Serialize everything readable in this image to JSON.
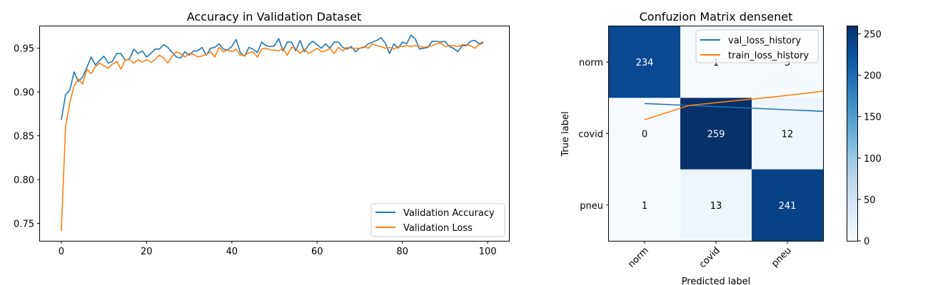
{
  "chart_data": [
    {
      "type": "line",
      "title": "Accuracy in Validation Dataset",
      "xlabel": "",
      "ylabel": "",
      "xlim": [
        -5,
        105
      ],
      "ylim": [
        0.73,
        0.975
      ],
      "x_ticks": [
        0,
        20,
        40,
        60,
        80,
        100
      ],
      "y_ticks": [
        0.75,
        0.8,
        0.85,
        0.9,
        0.95
      ],
      "y_tick_labels": [
        "0.75",
        "0.80",
        "0.85",
        "0.90",
        "0.95"
      ],
      "legend_position": "bottom-right",
      "series": [
        {
          "name": "Validation Accuracy",
          "color": "#1f77b4",
          "x": [
            0,
            1,
            2,
            3,
            4,
            5,
            6,
            7,
            8,
            9,
            10,
            11,
            12,
            13,
            14,
            15,
            16,
            17,
            18,
            19,
            20,
            21,
            22,
            23,
            24,
            25,
            26,
            27,
            28,
            29,
            30,
            31,
            32,
            33,
            34,
            35,
            36,
            37,
            38,
            39,
            40,
            41,
            42,
            43,
            44,
            45,
            46,
            47,
            48,
            49,
            50,
            51,
            52,
            53,
            54,
            55,
            56,
            57,
            58,
            59,
            60,
            61,
            62,
            63,
            64,
            65,
            66,
            67,
            68,
            69,
            70,
            71,
            72,
            73,
            74,
            75,
            76,
            77,
            78,
            79,
            80,
            81,
            82,
            83,
            84,
            85,
            86,
            87,
            88,
            89,
            90,
            91,
            92,
            93,
            94,
            95,
            96,
            97,
            98,
            99
          ],
          "values": [
            0.868,
            0.897,
            0.902,
            0.923,
            0.912,
            0.917,
            0.928,
            0.94,
            0.931,
            0.936,
            0.941,
            0.933,
            0.935,
            0.944,
            0.944,
            0.936,
            0.938,
            0.949,
            0.944,
            0.947,
            0.94,
            0.944,
            0.949,
            0.949,
            0.954,
            0.951,
            0.945,
            0.94,
            0.939,
            0.946,
            0.942,
            0.947,
            0.947,
            0.951,
            0.942,
            0.95,
            0.951,
            0.955,
            0.949,
            0.948,
            0.952,
            0.96,
            0.945,
            0.941,
            0.951,
            0.949,
            0.945,
            0.957,
            0.953,
            0.952,
            0.953,
            0.961,
            0.947,
            0.957,
            0.957,
            0.947,
            0.959,
            0.946,
            0.954,
            0.958,
            0.954,
            0.95,
            0.955,
            0.95,
            0.957,
            0.957,
            0.951,
            0.949,
            0.952,
            0.946,
            0.95,
            0.951,
            0.955,
            0.957,
            0.959,
            0.962,
            0.956,
            0.944,
            0.955,
            0.95,
            0.957,
            0.955,
            0.965,
            0.961,
            0.949,
            0.95,
            0.951,
            0.958,
            0.958,
            0.957,
            0.958,
            0.952,
            0.95,
            0.946,
            0.953,
            0.953,
            0.958,
            0.959,
            0.955,
            0.957
          ]
        },
        {
          "name": "Validation Loss",
          "color": "#ff7f0e",
          "x": [
            0,
            1,
            2,
            3,
            4,
            5,
            6,
            7,
            8,
            9,
            10,
            11,
            12,
            13,
            14,
            15,
            16,
            17,
            18,
            19,
            20,
            21,
            22,
            23,
            24,
            25,
            26,
            27,
            28,
            29,
            30,
            31,
            32,
            33,
            34,
            35,
            36,
            37,
            38,
            39,
            40,
            41,
            42,
            43,
            44,
            45,
            46,
            47,
            48,
            49,
            50,
            51,
            52,
            53,
            54,
            55,
            56,
            57,
            58,
            59,
            60,
            61,
            62,
            63,
            64,
            65,
            66,
            67,
            68,
            69,
            70,
            71,
            72,
            73,
            74,
            75,
            76,
            77,
            78,
            79,
            80,
            81,
            82,
            83,
            84,
            85,
            86,
            87,
            88,
            89,
            90,
            91,
            92,
            93,
            94,
            95,
            96,
            97,
            98,
            99
          ],
          "values": [
            0.741,
            0.86,
            0.888,
            0.907,
            0.915,
            0.909,
            0.926,
            0.921,
            0.929,
            0.933,
            0.93,
            0.927,
            0.932,
            0.935,
            0.926,
            0.937,
            0.937,
            0.933,
            0.937,
            0.934,
            0.937,
            0.934,
            0.937,
            0.942,
            0.939,
            0.933,
            0.941,
            0.946,
            0.944,
            0.94,
            0.944,
            0.943,
            0.94,
            0.941,
            0.943,
            0.946,
            0.94,
            0.951,
            0.946,
            0.948,
            0.946,
            0.949,
            0.942,
            0.942,
            0.945,
            0.946,
            0.94,
            0.949,
            0.95,
            0.948,
            0.948,
            0.947,
            0.95,
            0.942,
            0.951,
            0.95,
            0.944,
            0.949,
            0.944,
            0.947,
            0.95,
            0.946,
            0.947,
            0.95,
            0.944,
            0.951,
            0.947,
            0.951,
            0.95,
            0.95,
            0.95,
            0.952,
            0.95,
            0.955,
            0.953,
            0.952,
            0.95,
            0.951,
            0.949,
            0.952,
            0.952,
            0.953,
            0.952,
            0.953,
            0.952,
            0.951,
            0.952,
            0.953,
            0.955,
            0.956,
            0.952,
            0.953,
            0.953,
            0.952,
            0.954,
            0.954,
            0.953,
            0.95,
            0.954,
            0.956
          ]
        }
      ]
    },
    {
      "type": "heatmap",
      "title": "Confuzion Matrix densenet",
      "xlabel": "Predicted label",
      "ylabel": "True label",
      "row_labels": [
        "norm",
        "covid",
        "pneu"
      ],
      "col_labels": [
        "norm",
        "covid",
        "pneu"
      ],
      "matrix": [
        [
          234,
          1,
          3
        ],
        [
          0,
          259,
          12
        ],
        [
          1,
          13,
          241
        ]
      ],
      "colorbar": {
        "min": 0,
        "max": 259,
        "ticks": [
          0,
          50,
          100,
          150,
          200,
          250
        ]
      },
      "overlay_legend_position": "top-right",
      "overlay_series": [
        {
          "name": "val_loss_history",
          "color": "#1f77b4",
          "values": [
            0.155,
            0.14,
            0.125,
            0.11,
            0.095
          ]
        },
        {
          "name": "train_loss_history",
          "color": "#ff7f0e",
          "values": [
            0.03,
            0.14,
            0.175,
            0.21,
            0.25
          ]
        }
      ]
    }
  ]
}
